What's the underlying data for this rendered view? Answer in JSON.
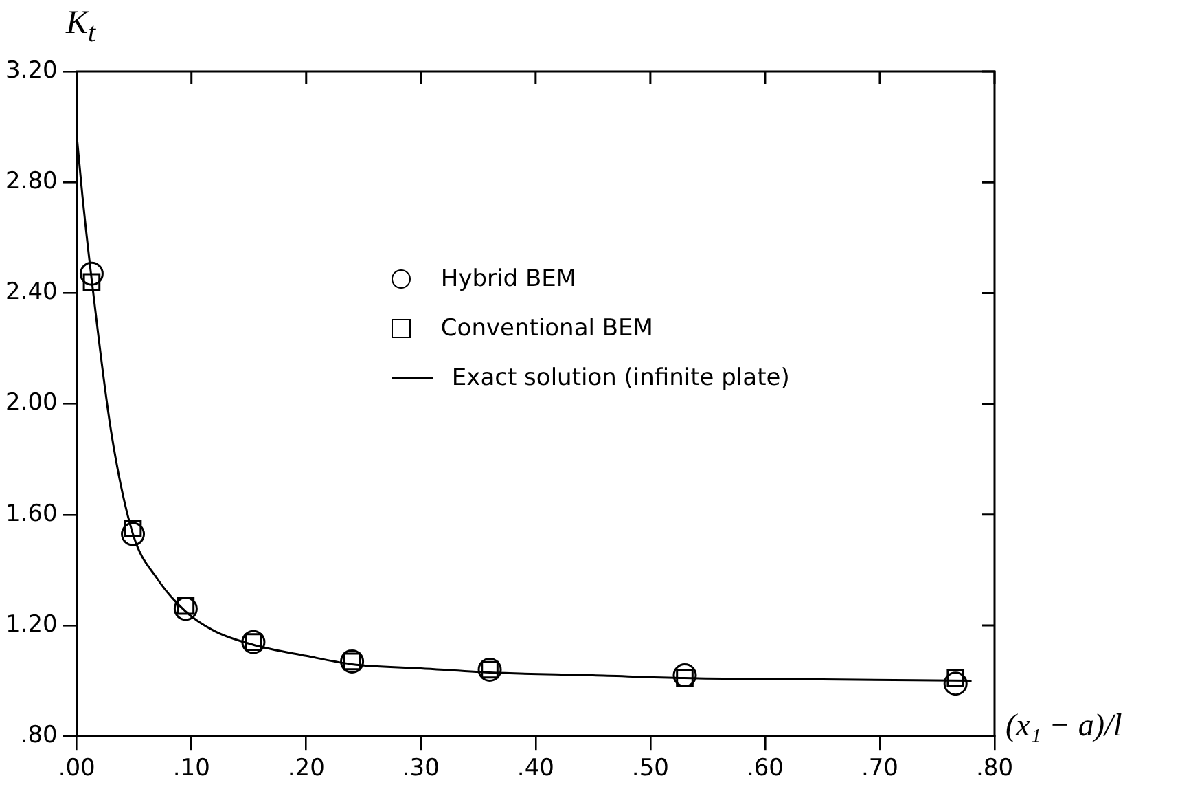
{
  "chart_data": {
    "type": "scatter",
    "xlabel": "(x₁ − a)/l",
    "ylabel": "K$_{t}$",
    "xlim": [
      0,
      0.8
    ],
    "ylim": [
      0.8,
      3.2
    ],
    "xticks": [
      {
        "value": 0,
        "label": ".00"
      },
      {
        "value": 0.1,
        "label": ".10"
      },
      {
        "value": 0.2,
        "label": ".20"
      },
      {
        "value": 0.3,
        "label": ".30"
      },
      {
        "value": 0.4,
        "label": ".40"
      },
      {
        "value": 0.5,
        "label": ".50"
      },
      {
        "value": 0.6,
        "label": ".60"
      },
      {
        "value": 0.7,
        "label": ".70"
      },
      {
        "value": 0.8,
        "label": ".80"
      }
    ],
    "yticks": [
      {
        "value": 0.8,
        "label": ".80"
      },
      {
        "value": 1.2,
        "label": "1.20"
      },
      {
        "value": 1.6,
        "label": "1.60"
      },
      {
        "value": 2.0,
        "label": "2.00"
      },
      {
        "value": 2.4,
        "label": "2.40"
      },
      {
        "value": 2.8,
        "label": "2.80"
      },
      {
        "value": 3.2,
        "label": "3.20"
      }
    ],
    "grid": false,
    "legend": "center",
    "series": [
      {
        "name": "Hybrid BEM",
        "marker": "circle",
        "color": "#000000",
        "x": [
          0.013,
          0.049,
          0.095,
          0.154,
          0.24,
          0.36,
          0.53,
          0.766
        ],
        "values": [
          2.47,
          1.53,
          1.26,
          1.14,
          1.07,
          1.04,
          1.02,
          0.99
        ]
      },
      {
        "name": "Conventional BEM",
        "marker": "square",
        "color": "#000000",
        "x": [
          0.013,
          0.049,
          0.095,
          0.154,
          0.24,
          0.36,
          0.53,
          0.766
        ],
        "values": [
          2.44,
          1.55,
          1.27,
          1.14,
          1.07,
          1.04,
          1.01,
          1.01
        ]
      },
      {
        "name": "Exact solution (infinite plate)",
        "type": "line",
        "marker": "none",
        "line_style": "solid",
        "color": "#000000",
        "x": [
          0,
          0.005,
          0.013,
          0.03,
          0.049,
          0.07,
          0.095,
          0.12,
          0.154,
          0.2,
          0.24,
          0.3,
          0.36,
          0.45,
          0.53,
          0.65,
          0.78
        ],
        "values": [
          2.97,
          2.75,
          2.45,
          1.9,
          1.53,
          1.37,
          1.25,
          1.18,
          1.13,
          1.09,
          1.06,
          1.045,
          1.03,
          1.02,
          1.01,
          1.005,
          1.0
        ]
      }
    ]
  }
}
